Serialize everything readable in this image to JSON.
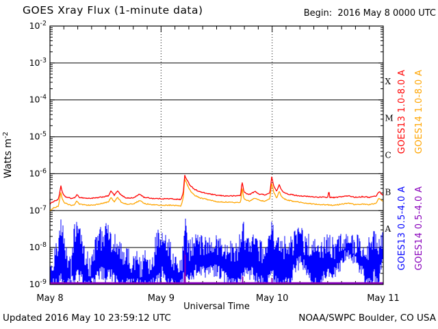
{
  "title": "GOES Xray Flux (1-minute data)",
  "begin_label": "Begin:  2016 May 8 0000 UTC",
  "footer": {
    "updated": "Updated 2016 May 10 23:59:12 UTC",
    "credit": "NOAA/SWPC Boulder, CO USA"
  },
  "chart_data": {
    "type": "line",
    "title": "GOES Xray Flux (1-minute data)",
    "xlabel": "Universal Time",
    "ylabel": "Watts m-2",
    "ylabel_base": "Watts m",
    "ylabel_exp": "-2",
    "begin_time": "2016 May 8 0000 UTC",
    "x_ticks": [
      "May 8",
      "May 9",
      "May 10",
      "May 11"
    ],
    "x_range_hours": [
      0,
      72
    ],
    "x_minor_tick_hours": 3,
    "y_scale": "log",
    "y_tick_exponents": [
      -2,
      -3,
      -4,
      -5,
      -6,
      -7,
      -8,
      -9
    ],
    "flux_class_letters": [
      "X",
      "M",
      "C",
      "B",
      "A"
    ],
    "grid": {
      "h_lines_exp": [
        -3,
        -4,
        -5,
        -6,
        -7,
        -8
      ],
      "v_dotted_hours": [
        24,
        48
      ]
    },
    "colors": {
      "frame": "#000000",
      "background": "#ffffff"
    },
    "series": [
      {
        "name": "GOES13 1.0-8.0 A",
        "color": "#ff0000",
        "style": "line",
        "noise": 0.013,
        "points": [
          [
            0,
            1.5e-07
          ],
          [
            0.8,
            1.8e-07
          ],
          [
            1.8,
            2e-07
          ],
          [
            2.1,
            3e-07
          ],
          [
            2.35,
            4.8e-07
          ],
          [
            2.7,
            3e-07
          ],
          [
            3.2,
            2.4e-07
          ],
          [
            4.5,
            2.15e-07
          ],
          [
            5.3,
            2.2e-07
          ],
          [
            5.8,
            2.7e-07
          ],
          [
            6.3,
            2.3e-07
          ],
          [
            8,
            2.15e-07
          ],
          [
            10,
            2.2e-07
          ],
          [
            12.6,
            2.5e-07
          ],
          [
            13.2,
            3.4e-07
          ],
          [
            13.9,
            2.6e-07
          ],
          [
            14.6,
            3.4e-07
          ],
          [
            15.4,
            2.6e-07
          ],
          [
            16.5,
            2.2e-07
          ],
          [
            18,
            2.2e-07
          ],
          [
            19.4,
            2.8e-07
          ],
          [
            20.3,
            2.3e-07
          ],
          [
            22,
            2.15e-07
          ],
          [
            24,
            2.1e-07
          ],
          [
            26,
            2.1e-07
          ],
          [
            28.3,
            2e-07
          ],
          [
            28.8,
            3e-07
          ],
          [
            29.1,
            9.2e-07
          ],
          [
            29.5,
            7e-07
          ],
          [
            30.2,
            5e-07
          ],
          [
            31.2,
            3.8e-07
          ],
          [
            32.5,
            3.2e-07
          ],
          [
            34,
            2.9e-07
          ],
          [
            36,
            2.6e-07
          ],
          [
            38,
            2.5e-07
          ],
          [
            40,
            2.5e-07
          ],
          [
            41.2,
            2.6e-07
          ],
          [
            41.5,
            6.2e-07
          ],
          [
            41.9,
            3.2e-07
          ],
          [
            43,
            2.7e-07
          ],
          [
            44.3,
            3.3e-07
          ],
          [
            45.2,
            2.8e-07
          ],
          [
            46.5,
            2.7e-07
          ],
          [
            47.5,
            3e-07
          ],
          [
            47.9,
            8e-07
          ],
          [
            48.4,
            4.5e-07
          ],
          [
            49.0,
            3.3e-07
          ],
          [
            49.5,
            5e-07
          ],
          [
            50.2,
            3.3e-07
          ],
          [
            51.5,
            2.8e-07
          ],
          [
            53,
            2.6e-07
          ],
          [
            55,
            2.45e-07
          ],
          [
            57,
            2.35e-07
          ],
          [
            59,
            2.3e-07
          ],
          [
            60.1,
            2.3e-07
          ],
          [
            60.25,
            4e-07
          ],
          [
            60.4,
            2.3e-07
          ],
          [
            61.5,
            2.25e-07
          ],
          [
            63,
            2.4e-07
          ],
          [
            64.5,
            2.5e-07
          ],
          [
            66,
            2.3e-07
          ],
          [
            67.5,
            2.4e-07
          ],
          [
            69,
            2.3e-07
          ],
          [
            70.5,
            2.5e-07
          ],
          [
            71.1,
            3.3e-07
          ],
          [
            71.8,
            2.7e-07
          ],
          [
            72,
            2.7e-07
          ]
        ]
      },
      {
        "name": "GOES14 1.0-8.0 A",
        "color": "#ffa500",
        "style": "line",
        "noise": 0.013,
        "points": [
          [
            0,
            1e-07
          ],
          [
            0.8,
            1.2e-07
          ],
          [
            1.8,
            1.3e-07
          ],
          [
            2.1,
            2e-07
          ],
          [
            2.35,
            3.2e-07
          ],
          [
            2.7,
            2e-07
          ],
          [
            3.2,
            1.6e-07
          ],
          [
            4.5,
            1.4e-07
          ],
          [
            5.3,
            1.45e-07
          ],
          [
            5.8,
            1.8e-07
          ],
          [
            6.3,
            1.5e-07
          ],
          [
            8,
            1.4e-07
          ],
          [
            10,
            1.45e-07
          ],
          [
            12.6,
            1.7e-07
          ],
          [
            13.2,
            2.3e-07
          ],
          [
            13.9,
            1.7e-07
          ],
          [
            14.6,
            2.3e-07
          ],
          [
            15.4,
            1.7e-07
          ],
          [
            16.5,
            1.5e-07
          ],
          [
            18,
            1.5e-07
          ],
          [
            19.4,
            1.9e-07
          ],
          [
            20.3,
            1.55e-07
          ],
          [
            22,
            1.45e-07
          ],
          [
            24,
            1.4e-07
          ],
          [
            26,
            1.4e-07
          ],
          [
            28.3,
            1.35e-07
          ],
          [
            28.8,
            2.2e-07
          ],
          [
            29.1,
            7.5e-07
          ],
          [
            29.5,
            5.5e-07
          ],
          [
            30.2,
            3.6e-07
          ],
          [
            31.2,
            2.6e-07
          ],
          [
            32.5,
            2.2e-07
          ],
          [
            34,
            2e-07
          ],
          [
            36,
            1.75e-07
          ],
          [
            38,
            1.7e-07
          ],
          [
            40,
            1.65e-07
          ],
          [
            41.2,
            1.7e-07
          ],
          [
            41.5,
            4.2e-07
          ],
          [
            41.9,
            2.1e-07
          ],
          [
            43,
            1.8e-07
          ],
          [
            44.3,
            2.2e-07
          ],
          [
            45.2,
            1.9e-07
          ],
          [
            46.5,
            1.8e-07
          ],
          [
            47.5,
            2.1e-07
          ],
          [
            47.9,
            5.5e-07
          ],
          [
            48.4,
            3e-07
          ],
          [
            49.0,
            2.2e-07
          ],
          [
            49.5,
            3.3e-07
          ],
          [
            50.2,
            2.2e-07
          ],
          [
            51.5,
            1.9e-07
          ],
          [
            53,
            1.75e-07
          ],
          [
            55,
            1.6e-07
          ],
          [
            57,
            1.5e-07
          ],
          [
            59,
            1.45e-07
          ],
          [
            61.5,
            1.4e-07
          ],
          [
            63,
            1.5e-07
          ],
          [
            64.5,
            1.6e-07
          ],
          [
            66,
            1.45e-07
          ],
          [
            67.5,
            1.5e-07
          ],
          [
            69,
            1.45e-07
          ],
          [
            70.5,
            1.6e-07
          ],
          [
            71.1,
            2.2e-07
          ],
          [
            71.8,
            1.8e-07
          ],
          [
            72,
            1.8e-07
          ]
        ]
      },
      {
        "name": "GOES13 0.5-4.0 A",
        "color": "#0000ff",
        "style": "envelope",
        "noise": 0.32,
        "points": [
          [
            0,
            1e-09,
            3e-09
          ],
          [
            1,
            1e-09,
            6e-09
          ],
          [
            1.8,
            1e-09,
            1e-08
          ],
          [
            2.3,
            1.5e-09,
            3e-08
          ],
          [
            3.0,
            1e-09,
            2e-08
          ],
          [
            3.8,
            1e-09,
            4e-09
          ],
          [
            4.6,
            1e-09,
            2.5e-09
          ],
          [
            5.2,
            1.5e-09,
            2.2e-08
          ],
          [
            6.0,
            2e-09,
            3e-08
          ],
          [
            6.8,
            1.5e-09,
            2.4e-08
          ],
          [
            7.6,
            1e-09,
            6e-09
          ],
          [
            8.6,
            1e-09,
            3e-09
          ],
          [
            9.6,
            1e-09,
            9e-09
          ],
          [
            10.6,
            2e-09,
            2.2e-08
          ],
          [
            11.4,
            2e-09,
            1.4e-08
          ],
          [
            12.2,
            1.5e-09,
            2.4e-08
          ],
          [
            13.0,
            2e-09,
            1.8e-08
          ],
          [
            13.8,
            1.5e-09,
            1.2e-08
          ],
          [
            14.8,
            1e-09,
            9e-09
          ],
          [
            15.8,
            1e-09,
            5e-09
          ],
          [
            16.8,
            1e-09,
            7e-09
          ],
          [
            17.8,
            1e-09,
            3e-09
          ],
          [
            18.8,
            1e-09,
            6e-09
          ],
          [
            19.8,
            1e-09,
            2.5e-09
          ],
          [
            20.8,
            1e-09,
            5e-09
          ],
          [
            21.8,
            1e-09,
            2e-09
          ],
          [
            22.6,
            1e-09,
            8e-09
          ],
          [
            23.4,
            1.5e-09,
            1.7e-08
          ],
          [
            24.2,
            2e-09,
            1.6e-08
          ],
          [
            25,
            1.5e-09,
            1.2e-08
          ],
          [
            26,
            1e-09,
            8e-09
          ],
          [
            27,
            1e-09,
            3e-09
          ],
          [
            28,
            1e-09,
            2.5e-09
          ],
          [
            28.8,
            1.5e-09,
            6e-09
          ],
          [
            29.15,
            3e-09,
            5e-08
          ],
          [
            29.5,
            2e-09,
            1.5e-08
          ],
          [
            30.2,
            1.5e-09,
            8e-09
          ],
          [
            31,
            2e-09,
            1.3e-08
          ],
          [
            32,
            2.5e-09,
            1.3e-08
          ],
          [
            33,
            2e-09,
            1.2e-08
          ],
          [
            34,
            2.5e-09,
            1.1e-08
          ],
          [
            35,
            2e-09,
            1.3e-08
          ],
          [
            36,
            2.5e-09,
            1.2e-08
          ],
          [
            37,
            2e-09,
            1.1e-08
          ],
          [
            38,
            1.5e-09,
            9e-09
          ],
          [
            39,
            1e-09,
            8e-09
          ],
          [
            40,
            1e-09,
            6e-09
          ],
          [
            40.8,
            1e-09,
            9e-09
          ],
          [
            41.7,
            2e-09,
            3.6e-08
          ],
          [
            42.3,
            2e-09,
            1.2e-08
          ],
          [
            43,
            2e-09,
            1e-08
          ],
          [
            44,
            2e-09,
            1.1e-08
          ],
          [
            45,
            1.5e-09,
            9e-09
          ],
          [
            46,
            1e-09,
            7e-09
          ],
          [
            46.8,
            1e-09,
            5e-09
          ],
          [
            47.9,
            2e-09,
            3e-08
          ],
          [
            48.6,
            1.5e-09,
            1.3e-08
          ],
          [
            49.4,
            1e-09,
            1.4e-08
          ],
          [
            50.2,
            1e-09,
            8e-09
          ],
          [
            51,
            1e-09,
            1.2e-08
          ],
          [
            52,
            1.5e-09,
            1e-08
          ],
          [
            53,
            3e-09,
            1.6e-08
          ],
          [
            54,
            4e-09,
            2e-08
          ],
          [
            55,
            3e-09,
            1.3e-08
          ],
          [
            56,
            2e-09,
            1.2e-08
          ],
          [
            56.8,
            1e-09,
            9e-09
          ],
          [
            57.6,
            1e-09,
            1.3e-08
          ],
          [
            58.4,
            1e-09,
            7e-09
          ],
          [
            59.2,
            2e-09,
            1.1e-08
          ],
          [
            60,
            2.5e-09,
            1.2e-08
          ],
          [
            61,
            2e-09,
            1e-08
          ],
          [
            62,
            2.5e-09,
            9e-09
          ],
          [
            63,
            4e-09,
            1.2e-08
          ],
          [
            64,
            6e-09,
            1.4e-08
          ],
          [
            65,
            6e-09,
            1.5e-08
          ],
          [
            66,
            5e-09,
            1.3e-08
          ],
          [
            66.8,
            3e-09,
            1.1e-08
          ],
          [
            67.6,
            2e-09,
            8e-09
          ],
          [
            68.4,
            1e-09,
            7e-09
          ],
          [
            69.2,
            1e-09,
            1.1e-08
          ],
          [
            70,
            2e-09,
            1.6e-08
          ],
          [
            70.8,
            1e-09,
            1e-08
          ],
          [
            71.4,
            3e-09,
            2e-08
          ],
          [
            72,
            4e-09,
            1.4e-08
          ]
        ]
      },
      {
        "name": "GOES14 0.5-4.0 A",
        "color": "#8800bb",
        "style": "envelope",
        "noise": 0,
        "points": [
          [
            0,
            1e-09,
            1.15e-09
          ],
          [
            28.95,
            1e-09,
            1.15e-09
          ],
          [
            29.05,
            1e-09,
            8.5e-09
          ],
          [
            29.25,
            1e-09,
            8.8e-09
          ],
          [
            29.4,
            1e-09,
            1.15e-09
          ],
          [
            41.5,
            1e-09,
            1.15e-09
          ],
          [
            41.6,
            1e-09,
            2.8e-09
          ],
          [
            41.75,
            1e-09,
            1.15e-09
          ],
          [
            47.85,
            1e-09,
            1.15e-09
          ],
          [
            47.95,
            1e-09,
            2e-09
          ],
          [
            48.1,
            1e-09,
            1.15e-09
          ],
          [
            72,
            1e-09,
            1.15e-09
          ]
        ]
      }
    ]
  }
}
